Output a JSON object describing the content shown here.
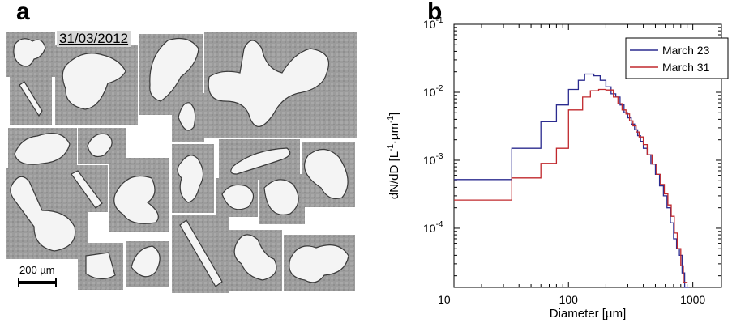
{
  "panel_a": {
    "letter": "a",
    "date": "31/03/2012",
    "scale_bar": "200 µm"
  },
  "panel_b": {
    "letter": "b"
  },
  "chart_data": {
    "type": "line",
    "xlabel": "Diameter [µm]",
    "ylabel_base": "dN/dD [L",
    "ylabel_exp1": "-1",
    "ylabel_mid": "·µm",
    "ylabel_exp2": "-1",
    "ylabel_end": "]",
    "x_scale": "log",
    "y_scale": "log",
    "xlim": [
      12,
      1700
    ],
    "ylim": [
      1.35e-05,
      0.1
    ],
    "x_ticks": [
      10,
      100,
      1000
    ],
    "x_tick_labels": [
      "10",
      "100",
      "1000"
    ],
    "y_ticks": [
      0.0001,
      0.001,
      0.01,
      0.1
    ],
    "y_tick_bases": [
      "10",
      "10",
      "10",
      "10"
    ],
    "y_tick_exps": [
      "-4",
      "-3",
      "-2",
      "-1"
    ],
    "grid": false,
    "legend_position": "top-right",
    "series": [
      {
        "name": "March 23",
        "color": "#2b2b8f",
        "x": [
          12,
          35,
          60,
          80,
          100,
          120,
          135,
          160,
          180,
          200,
          220,
          240,
          260,
          280,
          300,
          320,
          340,
          360,
          380,
          400,
          430,
          460,
          500,
          540,
          580,
          620,
          660,
          700,
          740,
          780,
          820,
          860
        ],
        "y": [
          0.00052,
          0.0015,
          0.0037,
          0.0065,
          0.011,
          0.015,
          0.0185,
          0.0175,
          0.015,
          0.012,
          0.0095,
          0.0085,
          0.0065,
          0.005,
          0.0042,
          0.0034,
          0.0028,
          0.0023,
          0.0019,
          0.0015,
          0.0012,
          0.00088,
          0.00062,
          0.00042,
          0.0003,
          0.0002,
          0.00012,
          7e-05,
          5e-05,
          4e-05,
          2.2e-05,
          1e-05
        ]
      },
      {
        "name": "March 31",
        "color": "#c0282d",
        "x": [
          12,
          35,
          60,
          80,
          100,
          130,
          150,
          175,
          200,
          230,
          250,
          270,
          290,
          310,
          330,
          350,
          370,
          400,
          430,
          470,
          510,
          550,
          590,
          630,
          670,
          710,
          750,
          800,
          840
        ],
        "y": [
          0.00026,
          0.00055,
          0.0009,
          0.0015,
          0.0055,
          0.0085,
          0.0105,
          0.011,
          0.0108,
          0.0085,
          0.0068,
          0.0055,
          0.0048,
          0.0038,
          0.0032,
          0.0026,
          0.0022,
          0.0017,
          0.0012,
          0.00088,
          0.00062,
          0.00044,
          0.00032,
          0.00022,
          0.00015,
          8.5e-05,
          5e-05,
          2.8e-05,
          1.6e-05
        ]
      }
    ]
  }
}
